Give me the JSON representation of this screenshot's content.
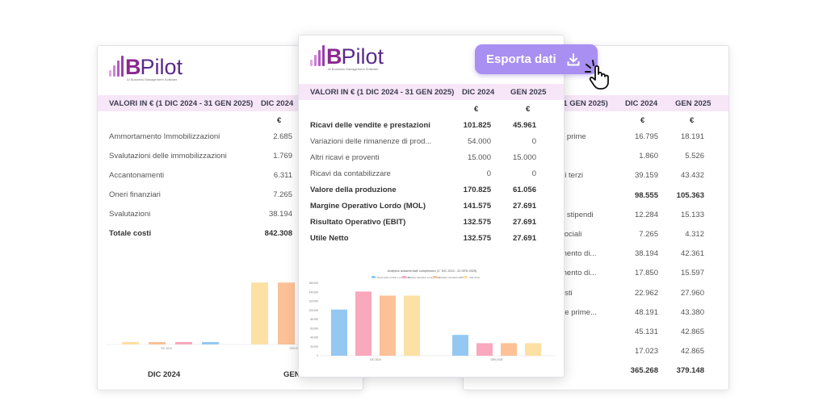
{
  "brand": {
    "name": "BPilot",
    "letter": "B",
    "suffix": "Pilot",
    "tagline": "AI Business Management Software"
  },
  "export_button": {
    "label": "Esporta dati",
    "icon": "download-icon",
    "cursor_icon": "hand-pointer-icon"
  },
  "colors": {
    "header_bg": "#f6e6f7",
    "accent": "#a88ff1",
    "brand": "#8a2890"
  },
  "left_card": {
    "header": {
      "period": "VALORI IN € (1 DIC 2024 - 31 GEN 2025)",
      "col1": "DIC 2024"
    },
    "currency": "€",
    "rows": [
      {
        "label": "Ammortamento Immobilizzazioni",
        "v1": "2.685"
      },
      {
        "label": "Svalutazioni delle immobilizzazioni",
        "v1": "1.769"
      },
      {
        "label": "Accantonamenti",
        "v1": "6.311"
      },
      {
        "label": "Oneri finanziari",
        "v1": "7.265"
      },
      {
        "label": "Svalutazioni",
        "v1": "38.194"
      },
      {
        "label": "Totale costi",
        "v1": "842.308"
      }
    ],
    "footer": {
      "col1": "DIC 2024",
      "col2": "GEN"
    }
  },
  "center_card": {
    "header": {
      "period": "VALORI IN € (1 DIC 2024 - 31 GEN 2025)",
      "col1": "DIC 2024",
      "col2": "GEN 2025"
    },
    "currency1": "€",
    "currency2": "€",
    "rows": [
      {
        "label": "Ricavi delle vendite e prestazioni",
        "v1": "101.825",
        "v2": "45.961",
        "bold": true
      },
      {
        "label": "Variazioni delle rimanenze di prod...",
        "v1": "54.000",
        "v2": "0",
        "bold": false
      },
      {
        "label": "Altri ricavi e proventi",
        "v1": "15.000",
        "v2": "15.000",
        "bold": false
      },
      {
        "label": "Ricavi da contabilizzare",
        "v1": "0",
        "v2": "0",
        "bold": false
      },
      {
        "label": "Valore della produzione",
        "v1": "170.825",
        "v2": "61.056",
        "bold": true
      },
      {
        "label": "Margine Operativo Lordo (MOL)",
        "v1": "141.575",
        "v2": "27.691",
        "bold": true
      },
      {
        "label": "Risultato Operativo (EBIT)",
        "v1": "132.575",
        "v2": "27.691",
        "bold": true
      },
      {
        "label": "Utile Netto",
        "v1": "132.575",
        "v2": "27.691",
        "bold": true
      }
    ]
  },
  "right_card": {
    "header": {
      "period_fragment": "31 GEN 2025)",
      "col1": "DIC 2024",
      "col2": "GEN 2025"
    },
    "currency1": "€",
    "currency2": "€",
    "rows": [
      {
        "label": "e prime",
        "v1": "16.795",
        "v2": "18.191",
        "bold": false
      },
      {
        "label": "",
        "v1": "1.860",
        "v2": "5.526",
        "bold": false
      },
      {
        "label": "di terzi",
        "v1": "39.159",
        "v2": "43.432",
        "bold": false
      },
      {
        "label": "e",
        "v1": "98.555",
        "v2": "105.363",
        "bold": true
      },
      {
        "label": "e stipendi",
        "v1": "12.284",
        "v2": "15.133",
        "bold": false
      },
      {
        "label": "sociali",
        "v1": "7.265",
        "v2": "4.312",
        "bold": false
      },
      {
        "label": "mento di...",
        "v1": "38.194",
        "v2": "42.361",
        "bold": false
      },
      {
        "label": "mento di...",
        "v1": "17.850",
        "v2": "15.597",
        "bold": false
      },
      {
        "label": "osti",
        "v1": "22.962",
        "v2": "27.960",
        "bold": false
      },
      {
        "label": "rie prime...",
        "v1": "48.191",
        "v2": "43.380",
        "bold": false
      },
      {
        "label": "",
        "v1": "45.131",
        "v2": "42.865",
        "bold": false
      },
      {
        "label": "",
        "v1": "17.023",
        "v2": "42.865",
        "bold": false
      },
      {
        "label": "",
        "v1": "365.268",
        "v2": "379.148",
        "bold": true
      }
    ]
  },
  "chart_data": [
    {
      "type": "bar",
      "title": "Analytics andamentale complessivo (1° DIC 2024 - 31 GEN 2025)",
      "categories": [
        "DIC 2024",
        "GEN 2025"
      ],
      "series": [
        {
          "name": "Ricavi delle vendite e prestazioni",
          "values": [
            101825,
            45961
          ],
          "color": "#94c8f2"
        },
        {
          "name": "Margine Operativo Lordo (MOL)",
          "values": [
            141575,
            27691
          ],
          "color": "#f9a8bd"
        },
        {
          "name": "Risultato Operativo (EBIT)",
          "values": [
            132575,
            27691
          ],
          "color": "#fcc196"
        },
        {
          "name": "Utile Netto",
          "values": [
            132575,
            27691
          ],
          "color": "#fde0a4"
        }
      ],
      "yticks": [
        "160.000",
        "140.000",
        "120.000",
        "100.000",
        "80.000",
        "60.000",
        "40.000",
        "20.000",
        "0"
      ],
      "ylim": [
        0,
        160000
      ],
      "grid": false,
      "legend": "top"
    },
    {
      "type": "bar",
      "categories": [
        "DIC 2024",
        "GEN 2025"
      ],
      "series": [
        {
          "values": [
            6311,
            842308
          ],
          "color": "#fde0a4"
        },
        {
          "values": [
            7265,
            842308
          ],
          "color": "#fcc196"
        },
        {
          "values": [
            6900,
            0
          ],
          "color": "#f9a8bd"
        },
        {
          "values": [
            11700,
            0
          ],
          "color": "#94c8f2"
        }
      ],
      "ylim": [
        0,
        900000
      ],
      "grid": false
    }
  ]
}
